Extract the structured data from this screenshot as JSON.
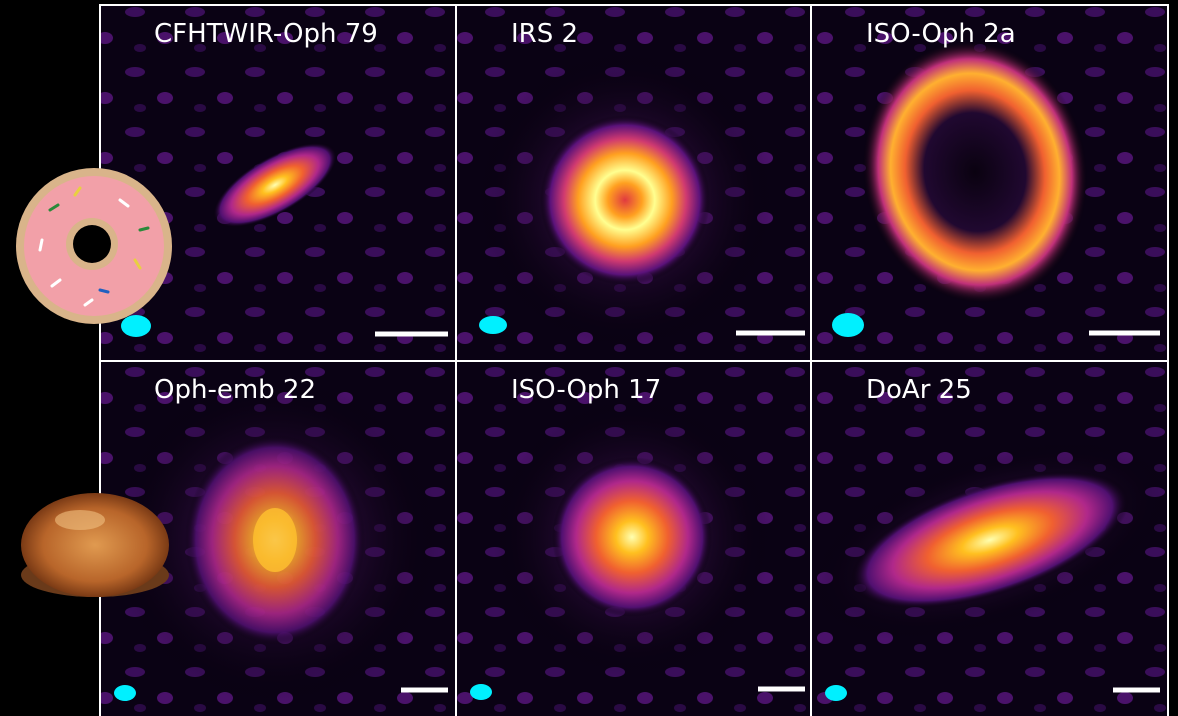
{
  "panels": [
    {
      "label": "CFHTWIR-Oph 79"
    },
    {
      "label": "IRS 2"
    },
    {
      "label": "ISO-Oph 2a"
    },
    {
      "label": "Oph-emb 22"
    },
    {
      "label": "ISO-Oph 17"
    },
    {
      "label": "DoAr 25"
    }
  ]
}
